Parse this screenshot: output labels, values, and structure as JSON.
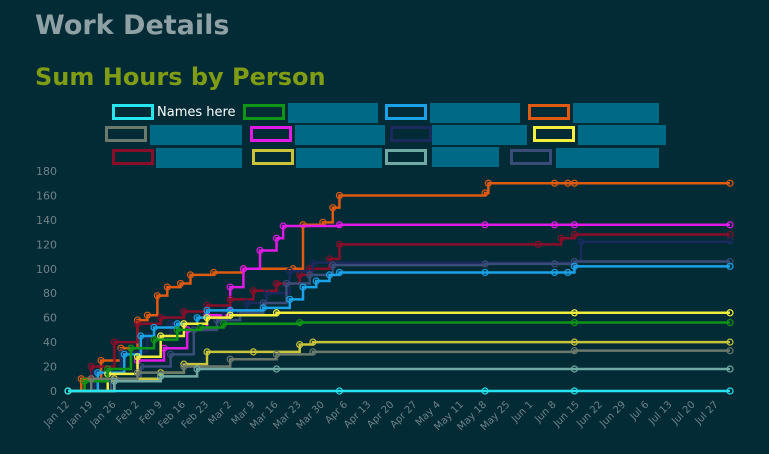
{
  "page": {
    "title": "Work Details",
    "section_title": "Sum Hours by Person"
  },
  "legend": {
    "items": [
      {
        "label": "Names here",
        "color": "#27e4ee"
      },
      {
        "label": "",
        "color": "#0f9516"
      },
      {
        "label": "",
        "color": "#1aa3e8"
      },
      {
        "label": "",
        "color": "#e05a10"
      },
      {
        "label": "",
        "color": "#6c7a6c"
      },
      {
        "label": "",
        "color": "#e21ae6"
      },
      {
        "label": "",
        "color": "#1b2a5c"
      },
      {
        "label": "",
        "color": "#f3ee3d"
      },
      {
        "label": "",
        "color": "#8a0e2a"
      },
      {
        "label": "",
        "color": "#c9c43a"
      },
      {
        "label": "",
        "color": "#6fa9a3"
      },
      {
        "label": "",
        "color": "#3a4c78"
      }
    ]
  },
  "chart_data": {
    "type": "line",
    "xlabel": "",
    "ylabel": "",
    "xlim": [
      "Jan 12",
      "Jul 31"
    ],
    "ylim": [
      0,
      180
    ],
    "yticks": [
      "0",
      "20",
      "40",
      "60",
      "80",
      "100",
      "120",
      "140",
      "160",
      "180"
    ],
    "xticks": [
      "Jan 12",
      "Jan 19",
      "Jan 26",
      "Feb 2",
      "Feb 9",
      "Feb 16",
      "Feb 23",
      "Mar 2",
      "Mar 9",
      "Mar 16",
      "Mar 23",
      "Mar 30",
      "Apr 6",
      "Apr 13",
      "Apr 20",
      "Apr 27",
      "May 4",
      "May 11",
      "May 18",
      "May 25",
      "Jun 1",
      "Jun 8",
      "Jun 15",
      "Jun 22",
      "Jun 29",
      "Jul 6",
      "Jul 13",
      "Jul 20",
      "Jul 27"
    ],
    "grid": false,
    "legend_position": "top",
    "series": [
      {
        "color": "#e05a10",
        "points": [
          [
            "Jan 12",
            0
          ],
          [
            "Jan 16",
            10
          ],
          [
            "Jan 22",
            25
          ],
          [
            "Jan 28",
            35
          ],
          [
            "Feb 2",
            58
          ],
          [
            "Feb 5",
            62
          ],
          [
            "Feb 8",
            78
          ],
          [
            "Feb 11",
            85
          ],
          [
            "Feb 15",
            88
          ],
          [
            "Feb 18",
            95
          ],
          [
            "Feb 25",
            97
          ],
          [
            "Mar 6",
            100
          ],
          [
            "Mar 21",
            100
          ],
          [
            "Mar 24",
            136
          ],
          [
            "Mar 30",
            138
          ],
          [
            "Apr 2",
            150
          ],
          [
            "Apr 4",
            160
          ],
          [
            "May 18",
            162
          ],
          [
            "May 19",
            170
          ],
          [
            "Jun 8",
            170
          ],
          [
            "Jun 12",
            170
          ],
          [
            "Jun 14",
            170
          ],
          [
            "Jul 31",
            170
          ]
        ]
      },
      {
        "color": "#e21ae6",
        "points": [
          [
            "Jan 12",
            0
          ],
          [
            "Jan 26",
            10
          ],
          [
            "Feb 2",
            25
          ],
          [
            "Feb 10",
            35
          ],
          [
            "Feb 17",
            50
          ],
          [
            "Feb 23",
            62
          ],
          [
            "Mar 2",
            85
          ],
          [
            "Mar 6",
            100
          ],
          [
            "Mar 11",
            115
          ],
          [
            "Mar 16",
            125
          ],
          [
            "Mar 18",
            135
          ],
          [
            "Apr 4",
            136
          ],
          [
            "May 18",
            136
          ],
          [
            "Jun 8",
            136
          ],
          [
            "Jun 14",
            136
          ],
          [
            "Jul 31",
            136
          ]
        ]
      },
      {
        "color": "#8a0e2a",
        "points": [
          [
            "Jan 12",
            0
          ],
          [
            "Jan 19",
            20
          ],
          [
            "Jan 26",
            40
          ],
          [
            "Feb 2",
            55
          ],
          [
            "Feb 9",
            60
          ],
          [
            "Feb 16",
            65
          ],
          [
            "Feb 23",
            70
          ],
          [
            "Mar 2",
            75
          ],
          [
            "Mar 9",
            82
          ],
          [
            "Mar 16",
            88
          ],
          [
            "Mar 23",
            95
          ],
          [
            "Mar 26",
            100
          ],
          [
            "Apr 1",
            108
          ],
          [
            "Apr 4",
            120
          ],
          [
            "Jun 3",
            120
          ],
          [
            "Jun 10",
            125
          ],
          [
            "Jun 14",
            128
          ],
          [
            "Jul 31",
            128
          ]
        ]
      },
      {
        "color": "#1b2a5c",
        "points": [
          [
            "Jan 12",
            0
          ],
          [
            "Jan 20",
            15
          ],
          [
            "Jan 28",
            32
          ],
          [
            "Feb 5",
            45
          ],
          [
            "Feb 12",
            55
          ],
          [
            "Feb 20",
            60
          ],
          [
            "Feb 28",
            65
          ],
          [
            "Mar 7",
            72
          ],
          [
            "Mar 13",
            80
          ],
          [
            "Mar 20",
            98
          ],
          [
            "Mar 27",
            105
          ],
          [
            "Jun 14",
            106
          ],
          [
            "Jun 16",
            122
          ],
          [
            "Jul 31",
            123
          ]
        ]
      },
      {
        "color": "#3a4c78",
        "points": [
          [
            "Jan 12",
            0
          ],
          [
            "Jan 25",
            10
          ],
          [
            "Feb 3",
            20
          ],
          [
            "Feb 12",
            30
          ],
          [
            "Feb 19",
            50
          ],
          [
            "Feb 26",
            58
          ],
          [
            "Mar 5",
            64
          ],
          [
            "Mar 12",
            72
          ],
          [
            "Mar 19",
            88
          ],
          [
            "Mar 26",
            95
          ],
          [
            "Apr 2",
            103
          ],
          [
            "May 18",
            104
          ],
          [
            "Jun 8",
            104
          ],
          [
            "Jun 14",
            106
          ],
          [
            "Jul 31",
            106
          ]
        ]
      },
      {
        "color": "#1aa3e8",
        "points": [
          [
            "Jan 12",
            0
          ],
          [
            "Jan 21",
            15
          ],
          [
            "Jan 29",
            30
          ],
          [
            "Feb 3",
            45
          ],
          [
            "Feb 7",
            52
          ],
          [
            "Feb 14",
            55
          ],
          [
            "Feb 20",
            60
          ],
          [
            "Feb 23",
            66
          ],
          [
            "Mar 2",
            66
          ],
          [
            "Mar 12",
            68
          ],
          [
            "Mar 20",
            75
          ],
          [
            "Mar 24",
            85
          ],
          [
            "Mar 28",
            90
          ],
          [
            "Apr 1",
            95
          ],
          [
            "Apr 4",
            97
          ],
          [
            "May 18",
            97
          ],
          [
            "Jun 8",
            97
          ],
          [
            "Jun 12",
            97
          ],
          [
            "Jun 14",
            102
          ],
          [
            "Jul 31",
            102
          ]
        ]
      },
      {
        "color": "#f3ee3d",
        "points": [
          [
            "Jan 12",
            0
          ],
          [
            "Jan 24",
            14
          ],
          [
            "Feb 2",
            28
          ],
          [
            "Feb 9",
            45
          ],
          [
            "Feb 16",
            55
          ],
          [
            "Feb 23",
            60
          ],
          [
            "Mar 2",
            62
          ],
          [
            "Mar 16",
            64
          ],
          [
            "Jun 14",
            64
          ],
          [
            "Jul 31",
            64
          ]
        ]
      },
      {
        "color": "#0f9516",
        "points": [
          [
            "Jan 12",
            0
          ],
          [
            "Jan 17",
            8
          ],
          [
            "Jan 24",
            18
          ],
          [
            "Jan 31",
            35
          ],
          [
            "Feb 7",
            42
          ],
          [
            "Feb 14",
            50
          ],
          [
            "Feb 21",
            52
          ],
          [
            "Feb 28",
            55
          ],
          [
            "Mar 23",
            56
          ],
          [
            "Jun 14",
            56
          ],
          [
            "Jul 31",
            56
          ]
        ]
      },
      {
        "color": "#c9c43a",
        "points": [
          [
            "Jan 12",
            0
          ],
          [
            "Jan 26",
            10
          ],
          [
            "Feb 9",
            15
          ],
          [
            "Feb 16",
            22
          ],
          [
            "Feb 23",
            32
          ],
          [
            "Mar 9",
            32
          ],
          [
            "Mar 23",
            38
          ],
          [
            "Mar 27",
            40
          ],
          [
            "Jun 14",
            40
          ],
          [
            "Jul 31",
            40
          ]
        ]
      },
      {
        "color": "#6c7a6c",
        "points": [
          [
            "Jan 12",
            0
          ],
          [
            "Jan 19",
            10
          ],
          [
            "Feb 2",
            15
          ],
          [
            "Feb 16",
            20
          ],
          [
            "Mar 2",
            26
          ],
          [
            "Mar 16",
            30
          ],
          [
            "Mar 27",
            32
          ],
          [
            "Jun 14",
            33
          ],
          [
            "Jul 31",
            33
          ]
        ]
      },
      {
        "color": "#6fa9a3",
        "points": [
          [
            "Jan 12",
            0
          ],
          [
            "Jan 26",
            8
          ],
          [
            "Feb 9",
            12
          ],
          [
            "Feb 20",
            18
          ],
          [
            "Mar 16",
            18
          ],
          [
            "Jun 14",
            18
          ],
          [
            "Jul 31",
            18
          ]
        ]
      },
      {
        "color": "#27e4ee",
        "points": [
          [
            "Jan 12",
            0
          ],
          [
            "Apr 4",
            0
          ],
          [
            "May 18",
            0
          ],
          [
            "Jun 14",
            0
          ],
          [
            "Jul 31",
            0
          ]
        ]
      }
    ]
  }
}
